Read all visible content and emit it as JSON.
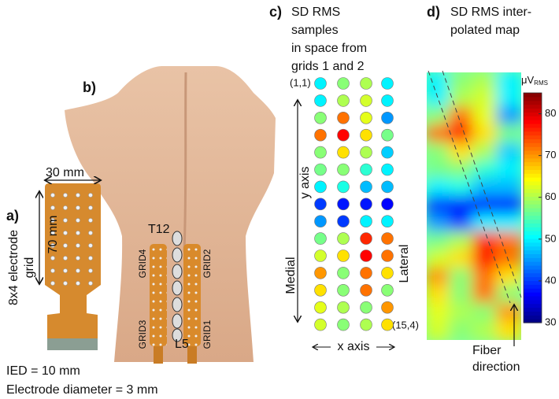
{
  "panel_a": {
    "label": "a)",
    "width_label": "30 mm",
    "length_label": "70 mm",
    "grid_label_lines": [
      "8x4 electrode",
      "grid"
    ],
    "ied": "IED = 10 mm",
    "diameter": "Electrode diameter = 3 mm"
  },
  "panel_b": {
    "label": "b)",
    "t12": "T12",
    "l5": "L5",
    "grids": [
      "GRID4",
      "GRID3",
      "GRID2",
      "GRID1"
    ]
  },
  "panel_c": {
    "label": "c)",
    "title_lines": [
      "SD RMS",
      "samples",
      "in space from",
      "grids 1 and 2"
    ],
    "first_index": "(1,1)",
    "last_index": "(15,4)",
    "y_axis": "y axis",
    "x_axis": "x axis",
    "medial": "Medial",
    "lateral": "Lateral",
    "samples": [
      [
        50,
        58,
        60,
        50
      ],
      [
        50,
        60,
        62,
        50
      ],
      [
        58,
        72,
        63,
        45
      ],
      [
        72,
        78,
        66,
        57
      ],
      [
        58,
        66,
        60,
        48
      ],
      [
        57,
        58,
        53,
        50
      ],
      [
        50,
        52,
        47,
        47
      ],
      [
        40,
        38,
        38,
        37
      ],
      [
        45,
        40,
        50,
        50
      ],
      [
        57,
        60,
        76,
        72
      ],
      [
        62,
        66,
        78,
        72
      ],
      [
        70,
        58,
        72,
        66
      ],
      [
        66,
        58,
        72,
        58
      ],
      [
        63,
        60,
        58,
        70
      ],
      [
        62,
        58,
        60,
        66
      ]
    ]
  },
  "panel_d": {
    "label": "d)",
    "title_lines": [
      "SD RMS inter-",
      "polated map"
    ],
    "unit": "μV",
    "unit_sub": "RMS",
    "clim": [
      30,
      85
    ],
    "cticks": [
      30,
      40,
      50,
      60,
      70,
      80
    ],
    "fiber_lines": [
      "Fiber",
      "direction"
    ]
  }
}
